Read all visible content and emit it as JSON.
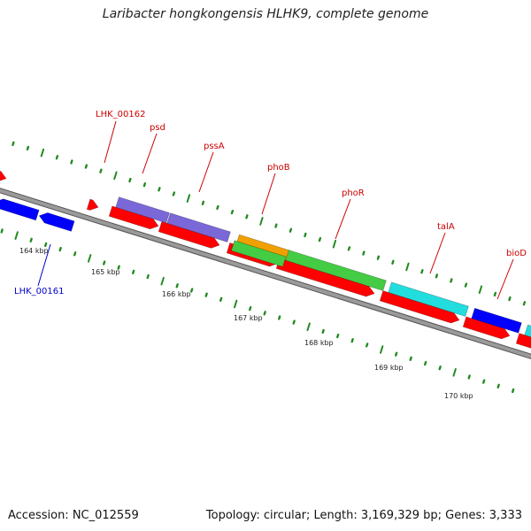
{
  "title": "Laribacter hongkongensis HLHK9, complete genome",
  "accession": "Accession: NC_012559",
  "summary": "Topology: circular; Length: 3,169,329 bp; Genes: 3,333",
  "colors": {
    "backbone": "#9a9a9a",
    "cds_red": "#ff0000",
    "gene_blue": "#0000ff",
    "purple": "#7a68d8",
    "orange": "#f0a000",
    "green": "#44cc44",
    "cyan": "#22dddd",
    "tick_green": "#228b22",
    "label_red": "#cc0000",
    "label_blue": "#0000cc"
  },
  "scale": {
    "ticks": [
      {
        "label": "164 kbp"
      },
      {
        "label": "165 kbp"
      },
      {
        "label": "166 kbp"
      },
      {
        "label": "167 kbp"
      },
      {
        "label": "168 kbp"
      },
      {
        "label": "169 kbp"
      },
      {
        "label": "170 kbp"
      }
    ]
  },
  "gene_labels": [
    {
      "text": "LHK_00162",
      "color": "red"
    },
    {
      "text": "psd",
      "color": "red"
    },
    {
      "text": "pssA",
      "color": "red"
    },
    {
      "text": "phoB",
      "color": "red"
    },
    {
      "text": "phoR",
      "color": "red"
    },
    {
      "text": "talA",
      "color": "red"
    },
    {
      "text": "bioD",
      "color": "red"
    },
    {
      "text": "LHK_00161",
      "color": "blue"
    }
  ]
}
